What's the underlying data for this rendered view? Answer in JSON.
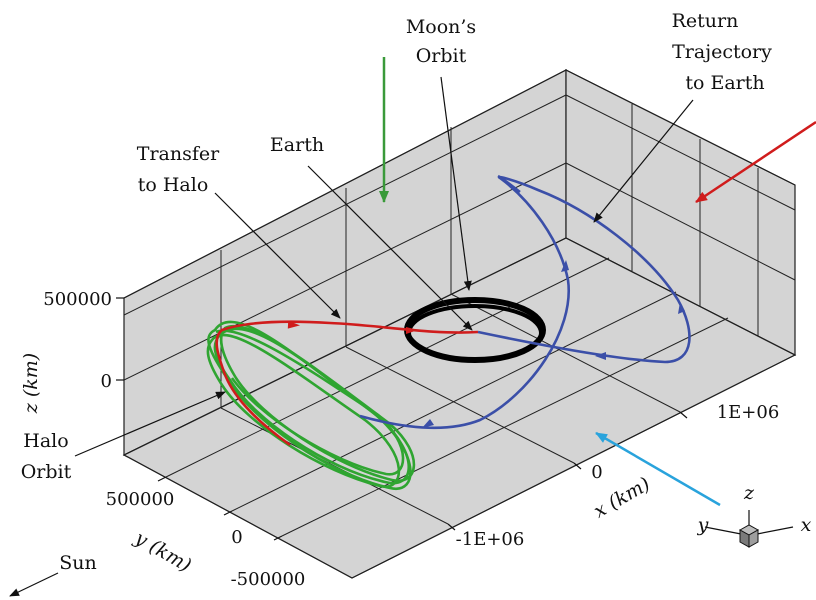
{
  "labels": {
    "moons_orbit": [
      "Moon’s",
      "Orbit"
    ],
    "return_trajectory": [
      "Return",
      "Trajectory",
      "to Earth"
    ],
    "transfer": [
      "Transfer",
      "to Halo"
    ],
    "earth": "Earth",
    "halo_orbit": [
      "Halo",
      "Orbit"
    ],
    "sun": "Sun"
  },
  "axes": {
    "z_label": "z (km)",
    "y_label": "y (km)",
    "x_label": "x (km)",
    "z_ticks": [
      "500000",
      "0"
    ],
    "y_ticks": [
      "500000",
      "0",
      "-500000"
    ],
    "x_ticks": [
      "-1E+06",
      "0",
      "1E+06"
    ]
  },
  "triad": {
    "x": "x",
    "y": "y",
    "z": "z"
  },
  "colors": {
    "halo": "#2fa531",
    "transfer": "#d01c1c",
    "return": "#3b4fa8",
    "moon_orbit": "#000000",
    "green_arrow": "#3a9a3a",
    "red_arrow": "#d01c1c",
    "blue_arrow": "#29a3dc",
    "panel": "#d4d4d4"
  }
}
